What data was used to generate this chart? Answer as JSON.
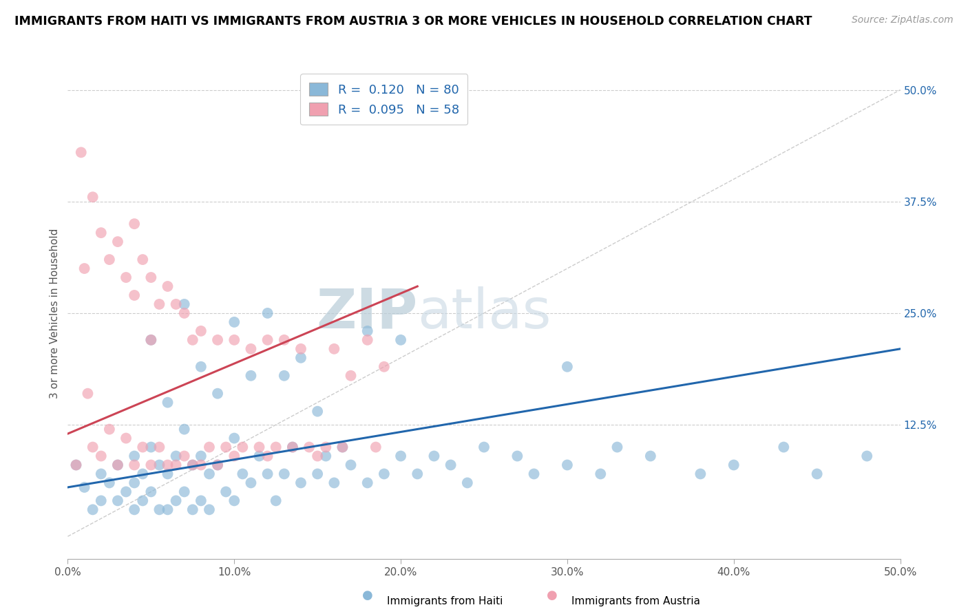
{
  "title": "IMMIGRANTS FROM HAITI VS IMMIGRANTS FROM AUSTRIA 3 OR MORE VEHICLES IN HOUSEHOLD CORRELATION CHART",
  "source": "Source: ZipAtlas.com",
  "ylabel": "3 or more Vehicles in Household",
  "xlim": [
    0.0,
    0.5
  ],
  "ylim": [
    -0.025,
    0.525
  ],
  "xticks": [
    0.0,
    0.1,
    0.2,
    0.3,
    0.4,
    0.5
  ],
  "yticks_right": [
    0.125,
    0.25,
    0.375,
    0.5
  ],
  "ytick_right_labels": [
    "12.5%",
    "25.0%",
    "37.5%",
    "50.0%"
  ],
  "xtick_labels": [
    "0.0%",
    "10.0%",
    "20.0%",
    "30.0%",
    "40.0%",
    "50.0%"
  ],
  "haiti_color": "#8ab8d8",
  "austria_color": "#f0a0b0",
  "haiti_line_color": "#2166ac",
  "austria_line_color": "#cc4455",
  "diagonal_color": "#cccccc",
  "R_haiti": 0.12,
  "N_haiti": 80,
  "R_austria": 0.095,
  "N_austria": 58,
  "legend_haiti_label": "Immigrants from Haiti",
  "legend_austria_label": "Immigrants from Austria",
  "haiti_line_x0": 0.0,
  "haiti_line_y0": 0.055,
  "haiti_line_x1": 0.5,
  "haiti_line_y1": 0.21,
  "austria_line_x0": 0.0,
  "austria_line_y0": 0.115,
  "austria_line_x1": 0.21,
  "austria_line_y1": 0.28,
  "haiti_scatter_x": [
    0.005,
    0.01,
    0.015,
    0.02,
    0.02,
    0.025,
    0.03,
    0.03,
    0.035,
    0.04,
    0.04,
    0.04,
    0.045,
    0.045,
    0.05,
    0.05,
    0.05,
    0.055,
    0.055,
    0.06,
    0.06,
    0.06,
    0.065,
    0.065,
    0.07,
    0.07,
    0.07,
    0.075,
    0.075,
    0.08,
    0.08,
    0.08,
    0.085,
    0.085,
    0.09,
    0.09,
    0.095,
    0.1,
    0.1,
    0.1,
    0.105,
    0.11,
    0.11,
    0.115,
    0.12,
    0.12,
    0.125,
    0.13,
    0.13,
    0.135,
    0.14,
    0.14,
    0.15,
    0.15,
    0.155,
    0.16,
    0.165,
    0.17,
    0.18,
    0.18,
    0.19,
    0.2,
    0.2,
    0.21,
    0.22,
    0.23,
    0.24,
    0.25,
    0.27,
    0.28,
    0.3,
    0.3,
    0.32,
    0.33,
    0.35,
    0.38,
    0.4,
    0.43,
    0.45,
    0.48
  ],
  "haiti_scatter_y": [
    0.08,
    0.055,
    0.03,
    0.07,
    0.04,
    0.06,
    0.08,
    0.04,
    0.05,
    0.09,
    0.06,
    0.03,
    0.07,
    0.04,
    0.22,
    0.1,
    0.05,
    0.08,
    0.03,
    0.15,
    0.07,
    0.03,
    0.09,
    0.04,
    0.26,
    0.12,
    0.05,
    0.08,
    0.03,
    0.19,
    0.09,
    0.04,
    0.07,
    0.03,
    0.16,
    0.08,
    0.05,
    0.24,
    0.11,
    0.04,
    0.07,
    0.18,
    0.06,
    0.09,
    0.25,
    0.07,
    0.04,
    0.18,
    0.07,
    0.1,
    0.2,
    0.06,
    0.14,
    0.07,
    0.09,
    0.06,
    0.1,
    0.08,
    0.23,
    0.06,
    0.07,
    0.22,
    0.09,
    0.07,
    0.09,
    0.08,
    0.06,
    0.1,
    0.09,
    0.07,
    0.08,
    0.19,
    0.07,
    0.1,
    0.09,
    0.07,
    0.08,
    0.1,
    0.07,
    0.09
  ],
  "austria_scatter_x": [
    0.005,
    0.008,
    0.01,
    0.012,
    0.015,
    0.015,
    0.02,
    0.02,
    0.025,
    0.025,
    0.03,
    0.03,
    0.035,
    0.035,
    0.04,
    0.04,
    0.04,
    0.045,
    0.045,
    0.05,
    0.05,
    0.05,
    0.055,
    0.055,
    0.06,
    0.06,
    0.065,
    0.065,
    0.07,
    0.07,
    0.075,
    0.075,
    0.08,
    0.08,
    0.085,
    0.09,
    0.09,
    0.095,
    0.1,
    0.1,
    0.105,
    0.11,
    0.115,
    0.12,
    0.12,
    0.125,
    0.13,
    0.135,
    0.14,
    0.145,
    0.15,
    0.155,
    0.16,
    0.165,
    0.17,
    0.18,
    0.185,
    0.19
  ],
  "austria_scatter_y": [
    0.08,
    0.43,
    0.3,
    0.16,
    0.38,
    0.1,
    0.34,
    0.09,
    0.31,
    0.12,
    0.33,
    0.08,
    0.29,
    0.11,
    0.35,
    0.27,
    0.08,
    0.31,
    0.1,
    0.29,
    0.22,
    0.08,
    0.26,
    0.1,
    0.28,
    0.08,
    0.26,
    0.08,
    0.25,
    0.09,
    0.22,
    0.08,
    0.23,
    0.08,
    0.1,
    0.22,
    0.08,
    0.1,
    0.22,
    0.09,
    0.1,
    0.21,
    0.1,
    0.22,
    0.09,
    0.1,
    0.22,
    0.1,
    0.21,
    0.1,
    0.09,
    0.1,
    0.21,
    0.1,
    0.18,
    0.22,
    0.1,
    0.19
  ]
}
